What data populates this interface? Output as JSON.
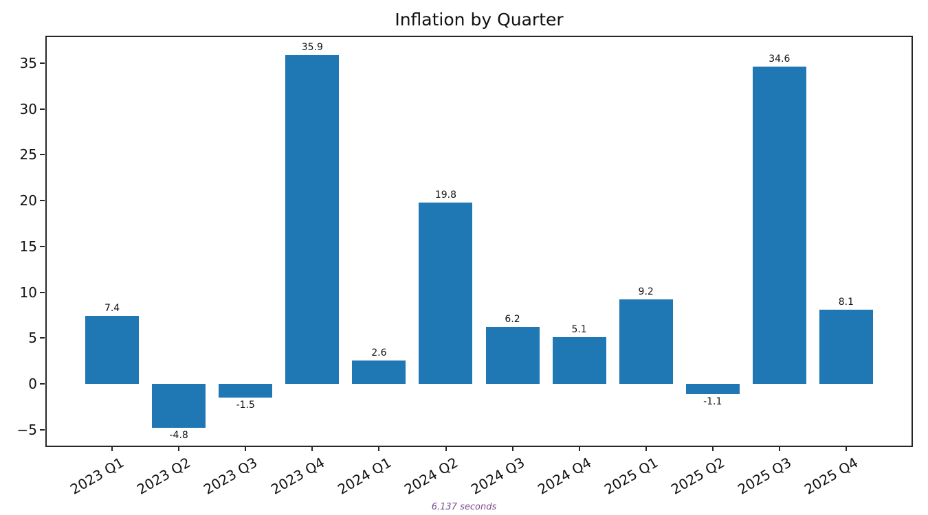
{
  "footer": {
    "timing_caption": "6.137 seconds",
    "timing_color": "#7d4b8c"
  },
  "chart_data": {
    "type": "bar",
    "title": "Inflation by Quarter",
    "categories": [
      "2023 Q1",
      "2023 Q2",
      "2023 Q3",
      "2023 Q4",
      "2024 Q1",
      "2024 Q2",
      "2024 Q3",
      "2024 Q4",
      "2025 Q1",
      "2025 Q2",
      "2025 Q3",
      "2025 Q4"
    ],
    "values": [
      7.4,
      -4.8,
      -1.5,
      35.9,
      2.6,
      19.8,
      6.2,
      5.1,
      9.2,
      -1.1,
      34.6,
      8.1
    ],
    "bar_labels": [
      "7.4",
      "-4.8",
      "-1.5",
      "35.9",
      "2.6",
      "19.8",
      "6.2",
      "5.1",
      "9.2",
      "-1.1",
      "34.6",
      "8.1"
    ],
    "bar_color": "#1f77b4",
    "xlabel": "",
    "ylabel": "",
    "xlim": [
      -0.99,
      11.99
    ],
    "ylim": [
      -6.8,
      37.9
    ],
    "yticks": [
      35,
      30,
      25,
      20,
      15,
      10,
      5,
      0,
      -5
    ],
    "ytick_labels": [
      "35",
      "30",
      "25",
      "20",
      "15",
      "10",
      "5",
      "0",
      "−5"
    ],
    "x_tick_rotation_deg": 30,
    "bar_width_fraction": 0.8,
    "grid": false,
    "legend": null,
    "axis_color": "#262626"
  }
}
